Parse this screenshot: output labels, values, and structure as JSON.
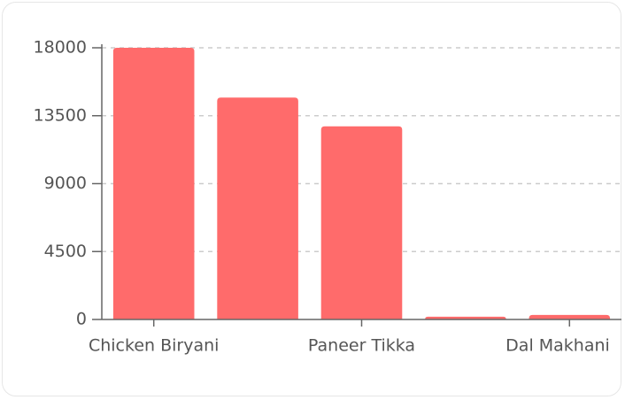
{
  "chart_data": {
    "type": "bar",
    "categories": [
      "Chicken Biryani",
      null,
      "Paneer Tikka",
      null,
      "Dal Makhani"
    ],
    "values": [
      18000,
      14700,
      12800,
      180,
      300
    ],
    "color": "#ff6b6b",
    "ylim": [
      0,
      18000
    ],
    "yticks": [
      0,
      4500,
      9000,
      13500,
      18000
    ],
    "grid": true
  }
}
